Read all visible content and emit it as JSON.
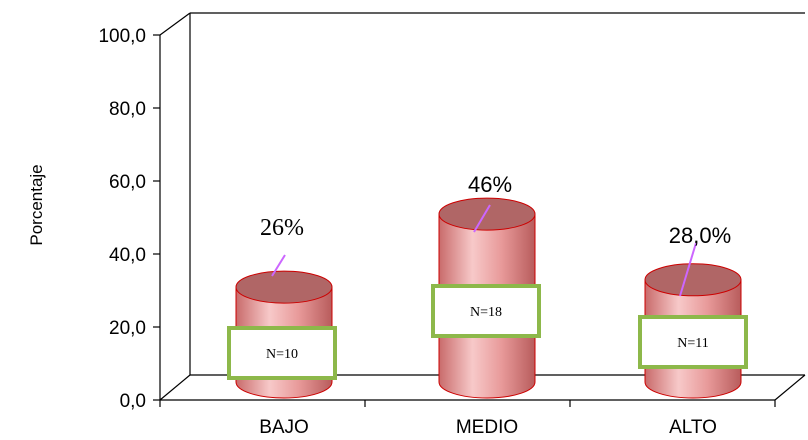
{
  "chart_data": {
    "type": "bar",
    "categories": [
      "BAJO",
      "MEDIO",
      "ALTO"
    ],
    "values": [
      26,
      46,
      28
    ],
    "data_labels": [
      "26%",
      "46%",
      "28,0%"
    ],
    "counts": [
      "N=10",
      "N=18",
      "N=11"
    ],
    "ylabel": "Porcentaje",
    "ylim": [
      0,
      100
    ],
    "yticks": [
      "0,0",
      "20,0",
      "40,0",
      "60,0",
      "80,0",
      "100,0"
    ],
    "grid": false,
    "style": "3d-cylinder"
  },
  "colors": {
    "cylinder_body": "#e89a9a",
    "cylinder_top": "#b06666",
    "cylinder_edge": "#cc0000",
    "leader_line": "#cc66ff",
    "count_box_border": "#8db84a"
  }
}
